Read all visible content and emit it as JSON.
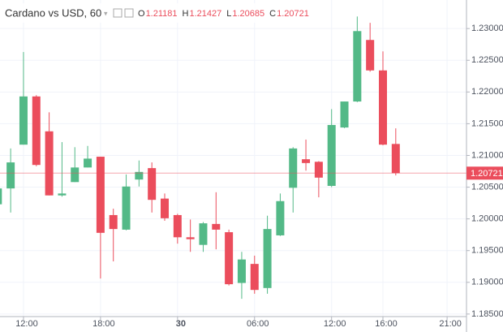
{
  "chart_data": {
    "type": "candlestick",
    "title": "Cardano vs USD, 60",
    "ohlc_labels": [
      "O",
      "H",
      "L",
      "C"
    ],
    "x": [
      -2,
      -1,
      0,
      1,
      2,
      3,
      4,
      5,
      6,
      7,
      8,
      9,
      10,
      11,
      12,
      13,
      14,
      15,
      16,
      17,
      18,
      19,
      20,
      21,
      22,
      23,
      24,
      25,
      26,
      27,
      28,
      29
    ],
    "open": [
      1.2023,
      1.2048,
      1.2117,
      1.2193,
      1.2138,
      1.2037,
      1.2058,
      1.2081,
      1.2098,
      1.2006,
      1.1983,
      1.2062,
      1.208,
      1.2032,
      1.2006,
      1.1971,
      1.1959,
      1.1992,
      1.1979,
      1.1899,
      1.1929,
      1.1891,
      1.1974,
      1.2049,
      1.2094,
      1.209,
      1.2052,
      1.2144,
      1.2185,
      1.2282,
      1.2234,
      1.21181
    ],
    "high": [
      1.205,
      1.2111,
      1.2263,
      1.2195,
      1.2168,
      1.2121,
      1.2113,
      1.2115,
      1.2098,
      1.2016,
      1.207,
      1.2092,
      1.2089,
      1.204,
      1.2008,
      1.1999,
      1.1995,
      1.2042,
      1.1983,
      1.1948,
      1.1942,
      1.2005,
      1.204,
      1.2113,
      1.2125,
      1.2091,
      1.2173,
      1.2185,
      1.2319,
      1.2309,
      1.2264,
      1.21427
    ],
    "low": [
      1.2012,
      1.201,
      1.2117,
      1.2083,
      1.2037,
      1.2035,
      1.2058,
      1.2081,
      1.1906,
      1.1933,
      1.1982,
      1.2051,
      1.201,
      1.1997,
      1.1961,
      1.1948,
      1.1948,
      1.1952,
      1.1895,
      1.1874,
      1.1882,
      1.1882,
      1.1973,
      1.201,
      1.2076,
      1.2034,
      1.205,
      1.2143,
      1.2184,
      1.2232,
      1.2116,
      1.20685
    ],
    "close": [
      1.2048,
      1.2089,
      1.2193,
      1.2085,
      1.2037,
      1.204,
      1.2081,
      1.2095,
      1.1978,
      1.1984,
      1.2051,
      1.2074,
      1.203,
      1.2001,
      1.1971,
      1.1968,
      1.1993,
      1.1983,
      1.1897,
      1.1936,
      1.1888,
      1.1984,
      1.2028,
      1.2111,
      1.2088,
      1.2065,
      1.2148,
      1.2185,
      1.2296,
      1.2234,
      1.2117,
      1.20721
    ],
    "up_color": "#53b987",
    "down_color": "#eb4d5c",
    "xlim": [
      -1.83,
      34.51
    ],
    "xticks": [
      {
        "value": 0,
        "label": "12:00"
      },
      {
        "value": 6,
        "label": "18:00"
      },
      {
        "value": 12,
        "label": "30"
      },
      {
        "value": 18,
        "label": "06:00"
      },
      {
        "value": 24,
        "label": "12:00"
      },
      {
        "value": 28,
        "label": "16:00"
      },
      {
        "value": 33,
        "label": "21:00"
      }
    ],
    "ylim": [
      1.1846,
      1.2345
    ],
    "yticks": [
      {
        "value": 1.185,
        "label": "1.18500"
      },
      {
        "value": 1.19,
        "label": "1.19000"
      },
      {
        "value": 1.195,
        "label": "1.19500"
      },
      {
        "value": 1.2,
        "label": "1.20000"
      },
      {
        "value": 1.205,
        "label": "1.20500"
      },
      {
        "value": 1.21,
        "label": "1.21000"
      },
      {
        "value": 1.215,
        "label": "1.21500"
      },
      {
        "value": 1.22,
        "label": "1.22000"
      },
      {
        "value": 1.225,
        "label": "1.22500"
      },
      {
        "value": 1.23,
        "label": "1.23000"
      }
    ],
    "grid": true
  }
}
